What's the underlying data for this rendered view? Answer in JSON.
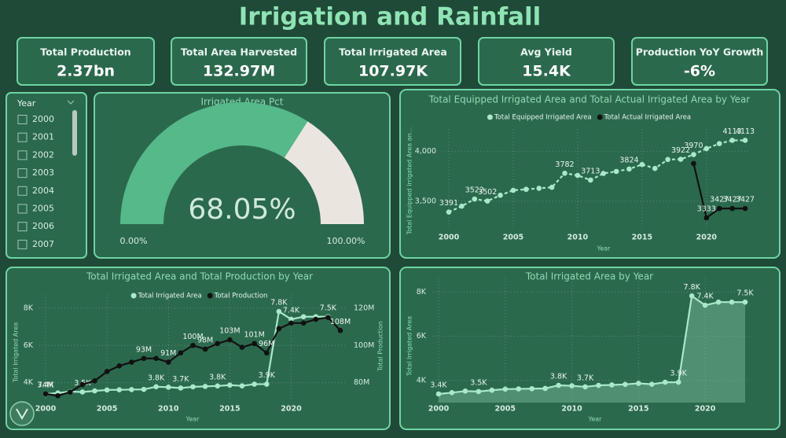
{
  "title": "Irrigation and Rainfall",
  "kpis": [
    {
      "label": "Total Production",
      "value": "2.37bn"
    },
    {
      "label": "Total Area Harvested",
      "value": "132.97M"
    },
    {
      "label": "Total Irrigated Area",
      "value": "107.97K"
    },
    {
      "label": "Avg Yield",
      "value": "15.4K"
    },
    {
      "label": "Production YoY Growth",
      "value": "-6%"
    }
  ],
  "slicer": {
    "title": "Year",
    "items": [
      "2000",
      "2001",
      "2002",
      "2003",
      "2004",
      "2005",
      "2006",
      "2007"
    ]
  },
  "chart_data": [
    {
      "type": "gauge",
      "title": "Irrigated Area Pct",
      "value": 68.05,
      "value_label": "68.05%",
      "min": 0,
      "max": 100,
      "min_label": "0.00%",
      "max_label": "100.00%",
      "color": "#55b98a",
      "track_color": "#ebe5e0"
    },
    {
      "type": "line",
      "title": "Total Equipped Irrigated Area and Total Actual Irrigated Area by Year",
      "x_label": "Year",
      "y_label": "Total Equipped Irrigated Area an...",
      "x": [
        2000,
        2001,
        2002,
        2003,
        2004,
        2005,
        2006,
        2007,
        2008,
        2009,
        2010,
        2011,
        2012,
        2013,
        2014,
        2015,
        2016,
        2017,
        2018,
        2019,
        2020,
        2021,
        2022,
        2023
      ],
      "xlim": [
        2000,
        2023
      ],
      "xticks": [
        2000,
        2005,
        2010,
        2015,
        2020
      ],
      "ylim": [
        3230,
        4180
      ],
      "yticks": [
        {
          "value": 3500,
          "label": "3,500"
        },
        {
          "value": 4000,
          "label": "4,000"
        }
      ],
      "grid": true,
      "legend": "top",
      "series": [
        {
          "name": "Total Equipped Irrigated Area",
          "color": "#a9e8c8",
          "line_style": "dashed",
          "values": [
            3391,
            3450,
            3522,
            3502,
            3560,
            3610,
            3620,
            3630,
            3640,
            3782,
            3760,
            3713,
            3780,
            3800,
            3824,
            3870,
            3830,
            3920,
            3922,
            3970,
            4030,
            4080,
            4113,
            4113
          ],
          "value_labels": [
            "3391",
            null,
            "3522",
            "3502",
            null,
            null,
            null,
            null,
            null,
            "3782",
            null,
            "3713",
            null,
            null,
            "3824",
            null,
            null,
            null,
            "3922",
            "3970",
            null,
            null,
            "4113",
            "4113"
          ]
        },
        {
          "name": "Total Actual Irrigated Area",
          "color": "#111111",
          "line_style": "solid",
          "values": [
            null,
            null,
            null,
            null,
            null,
            null,
            null,
            null,
            null,
            null,
            null,
            null,
            null,
            null,
            null,
            null,
            null,
            null,
            null,
            3880,
            3333,
            3427,
            3427,
            3427
          ],
          "value_labels": [
            null,
            null,
            null,
            null,
            null,
            null,
            null,
            null,
            null,
            null,
            null,
            null,
            null,
            null,
            null,
            null,
            null,
            null,
            null,
            null,
            "3333",
            "3427",
            "3427",
            "3427"
          ]
        }
      ]
    },
    {
      "type": "line",
      "title": "Total Irrigated Area and Total Production by Year",
      "x_label": "Year",
      "y_label": "Total Irrigated Area",
      "y2_label": "Total Production",
      "x": [
        2000,
        2001,
        2002,
        2003,
        2004,
        2005,
        2006,
        2007,
        2008,
        2009,
        2010,
        2011,
        2012,
        2013,
        2014,
        2015,
        2016,
        2017,
        2018,
        2019,
        2020,
        2021,
        2022,
        2023,
        2024
      ],
      "xlim": [
        2000,
        2024
      ],
      "xticks": [
        2000,
        2005,
        2010,
        2015,
        2020
      ],
      "ylim": [
        3100,
        8500
      ],
      "yticks": [
        {
          "value": 4000,
          "label": "4K"
        },
        {
          "value": 6000,
          "label": "6K"
        },
        {
          "value": 8000,
          "label": "8K"
        }
      ],
      "y2lim": [
        71000000,
        125000000
      ],
      "y2ticks": [
        {
          "value": 80000000,
          "label": "80M"
        },
        {
          "value": 100000000,
          "label": "100M"
        },
        {
          "value": 120000000,
          "label": "120M"
        }
      ],
      "grid": true,
      "legend": "top",
      "series": [
        {
          "name": "Total Irrigated Area",
          "color": "#a9e8c8",
          "line_style": "solid",
          "values": [
            3391,
            3450,
            3522,
            3502,
            3560,
            3610,
            3620,
            3630,
            3640,
            3782,
            3760,
            3713,
            3780,
            3800,
            3824,
            3870,
            3830,
            3920,
            3922,
            7820,
            7400,
            7540,
            7540,
            7540,
            null
          ],
          "value_labels": [
            "3.4K",
            null,
            null,
            "3.5K",
            null,
            null,
            null,
            null,
            null,
            "3.8K",
            null,
            "3.7K",
            null,
            null,
            "3.8K",
            null,
            null,
            null,
            "3.9K",
            "7.8K",
            "7.4K",
            null,
            null,
            "7.5K",
            null
          ]
        },
        {
          "name": "Total Production",
          "color": "#111111",
          "line_style": "solid",
          "axis": "y2",
          "values": [
            74000000,
            73000000,
            75000000,
            79000000,
            81000000,
            86000000,
            89000000,
            91000000,
            93000000,
            93000000,
            91000000,
            96000000,
            100000000,
            98000000,
            101000000,
            103000000,
            99000000,
            101000000,
            96000000,
            109000000,
            112000000,
            112000000,
            114000000,
            115000000,
            108000000
          ],
          "value_labels": [
            "74M",
            null,
            null,
            null,
            null,
            null,
            null,
            null,
            "93M",
            null,
            "91M",
            null,
            "100M",
            "98M",
            null,
            "103M",
            null,
            "101M",
            "96M",
            null,
            null,
            null,
            null,
            null,
            "108M"
          ]
        }
      ]
    },
    {
      "type": "area",
      "title": "Total Irrigated Area by Year",
      "x_label": "Year",
      "y_label": "Total Irrigated Area",
      "x": [
        2000,
        2001,
        2002,
        2003,
        2004,
        2005,
        2006,
        2007,
        2008,
        2009,
        2010,
        2011,
        2012,
        2013,
        2014,
        2015,
        2016,
        2017,
        2018,
        2019,
        2020,
        2021,
        2022,
        2023
      ],
      "xlim": [
        2000,
        2023
      ],
      "xticks": [
        2000,
        2005,
        2010,
        2015,
        2020
      ],
      "ylim": [
        3000,
        8400
      ],
      "yticks": [
        {
          "value": 4000,
          "label": "4K"
        },
        {
          "value": 6000,
          "label": "6K"
        },
        {
          "value": 8000,
          "label": "8K"
        }
      ],
      "grid": true,
      "series": [
        {
          "name": "Total Irrigated Area",
          "color": "#a9e8c8",
          "line_style": "solid",
          "values": [
            3391,
            3450,
            3522,
            3502,
            3560,
            3610,
            3620,
            3630,
            3640,
            3782,
            3760,
            3713,
            3780,
            3800,
            3824,
            3870,
            3830,
            3920,
            3922,
            7820,
            7400,
            7540,
            7540,
            7540
          ],
          "value_labels": [
            "3.4K",
            null,
            null,
            "3.5K",
            null,
            null,
            null,
            null,
            null,
            "3.8K",
            null,
            "3.7K",
            null,
            null,
            null,
            null,
            null,
            null,
            "3.9K",
            "7.8K",
            "7.4K",
            null,
            null,
            "7.5K"
          ]
        }
      ]
    }
  ]
}
